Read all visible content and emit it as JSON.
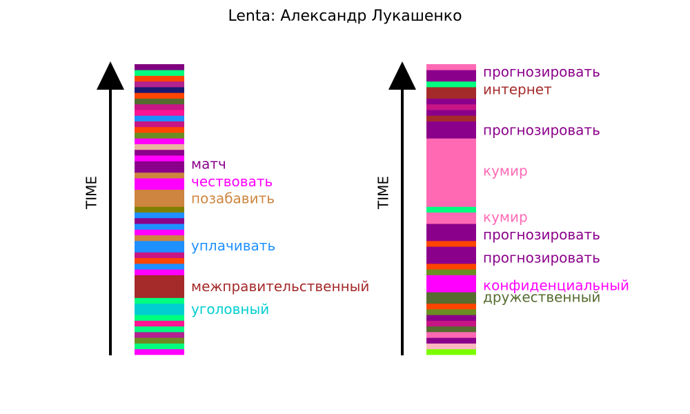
{
  "chart_data": {
    "type": "stacked-timeline",
    "title": "Lenta: Александр Лукашенко",
    "panels": [
      {
        "axis_label": "TIME",
        "segments": [
          {
            "color": "#ff00ff",
            "size": 1
          },
          {
            "color": "#00ff7f",
            "size": 1
          },
          {
            "color": "#6b8e23",
            "size": 1
          },
          {
            "color": "#b22290",
            "size": 1
          },
          {
            "color": "#00ff7f",
            "size": 1
          },
          {
            "color": "#ff1493",
            "size": 1
          },
          {
            "color": "#00ff7f",
            "size": 1
          },
          {
            "color": "#00ced1",
            "size": 2
          },
          {
            "color": "#00ff7f",
            "size": 1
          },
          {
            "color": "#a52a2a",
            "size": 4
          },
          {
            "color": "#ff00ff",
            "size": 1
          },
          {
            "color": "#1e90ff",
            "size": 1
          },
          {
            "color": "#ff4500",
            "size": 1
          },
          {
            "color": "#c71585",
            "size": 1
          },
          {
            "color": "#1e90ff",
            "size": 2
          },
          {
            "color": "#cd853f",
            "size": 1
          },
          {
            "color": "#ff00ff",
            "size": 1
          },
          {
            "color": "#1e90ff",
            "size": 1
          },
          {
            "color": "#8b008b",
            "size": 1
          },
          {
            "color": "#1e90ff",
            "size": 1
          },
          {
            "color": "#808000",
            "size": 1
          },
          {
            "color": "#cd853f",
            "size": 3
          },
          {
            "color": "#ff00ff",
            "size": 2
          },
          {
            "color": "#cd853f",
            "size": 1
          },
          {
            "color": "#8b008b",
            "size": 2
          },
          {
            "color": "#ff00ff",
            "size": 1
          },
          {
            "color": "#8b008b",
            "size": 1
          },
          {
            "color": "#e9b4a0",
            "size": 1
          },
          {
            "color": "#ff00ff",
            "size": 1
          },
          {
            "color": "#6b8e23",
            "size": 1
          },
          {
            "color": "#ff4500",
            "size": 1
          },
          {
            "color": "#c71585",
            "size": 1
          },
          {
            "color": "#1e90ff",
            "size": 1
          },
          {
            "color": "#ff1493",
            "size": 1
          },
          {
            "color": "#c71585",
            "size": 1
          },
          {
            "color": "#556b2f",
            "size": 1
          },
          {
            "color": "#ff4500",
            "size": 1
          },
          {
            "color": "#191970",
            "size": 1
          },
          {
            "color": "#b22290",
            "size": 1
          },
          {
            "color": "#ff4500",
            "size": 1
          },
          {
            "color": "#00ff7f",
            "size": 1
          },
          {
            "color": "#800080",
            "size": 1
          }
        ],
        "labels": [
          {
            "text": "уголовный",
            "color": "#00ced1",
            "pos": 0.153
          },
          {
            "text": "межправительственный",
            "color": "#a52a2a",
            "pos": 0.232
          },
          {
            "text": "уплачивать",
            "color": "#1e90ff",
            "pos": 0.372
          },
          {
            "text": "позабавить",
            "color": "#cd853f",
            "pos": 0.534
          },
          {
            "text": "чествовать",
            "color": "#ff00ff",
            "pos": 0.593
          },
          {
            "text": "матч",
            "color": "#8b008b",
            "pos": 0.653
          }
        ]
      },
      {
        "axis_label": "TIME",
        "segments": [
          {
            "color": "#7cfc00",
            "size": 1
          },
          {
            "color": "#ffb6c1",
            "size": 1
          },
          {
            "color": "#8b008b",
            "size": 1
          },
          {
            "color": "#ff69b4",
            "size": 1
          },
          {
            "color": "#556b2f",
            "size": 1
          },
          {
            "color": "#c71585",
            "size": 1
          },
          {
            "color": "#8b008b",
            "size": 1
          },
          {
            "color": "#6b8e23",
            "size": 1
          },
          {
            "color": "#ff4500",
            "size": 1
          },
          {
            "color": "#556b2f",
            "size": 2
          },
          {
            "color": "#ff00ff",
            "size": 3
          },
          {
            "color": "#6b8e23",
            "size": 1
          },
          {
            "color": "#ff4500",
            "size": 1
          },
          {
            "color": "#8b008b",
            "size": 3
          },
          {
            "color": "#ff4500",
            "size": 1
          },
          {
            "color": "#8b008b",
            "size": 3
          },
          {
            "color": "#ff69b4",
            "size": 2
          },
          {
            "color": "#00ff7f",
            "size": 1
          },
          {
            "color": "#ff69b4",
            "size": 12
          },
          {
            "color": "#8b008b",
            "size": 3
          },
          {
            "color": "#a52a2a",
            "size": 1
          },
          {
            "color": "#8b008b",
            "size": 1
          },
          {
            "color": "#c71585",
            "size": 1
          },
          {
            "color": "#8b008b",
            "size": 1
          },
          {
            "color": "#a52a2a",
            "size": 2
          },
          {
            "color": "#00ff7f",
            "size": 1
          },
          {
            "color": "#8b008b",
            "size": 2
          },
          {
            "color": "#ff69b4",
            "size": 1
          }
        ],
        "labels": [
          {
            "text": "дружественный",
            "color": "#556b2f",
            "pos": 0.195
          },
          {
            "text": "конфиденциальный",
            "color": "#ff00ff",
            "pos": 0.235
          },
          {
            "text": "прогнозировать",
            "color": "#8b008b",
            "pos": 0.33
          },
          {
            "text": "прогнозировать",
            "color": "#8b008b",
            "pos": 0.41
          },
          {
            "text": "кумир",
            "color": "#ff69b4",
            "pos": 0.47
          },
          {
            "text": "кумир",
            "color": "#ff69b4",
            "pos": 0.63
          },
          {
            "text": "прогнозировать",
            "color": "#8b008b",
            "pos": 0.77
          },
          {
            "text": "интернет",
            "color": "#a52a2a",
            "pos": 0.91
          },
          {
            "text": "прогнозировать",
            "color": "#8b008b",
            "pos": 0.97
          }
        ]
      }
    ]
  }
}
